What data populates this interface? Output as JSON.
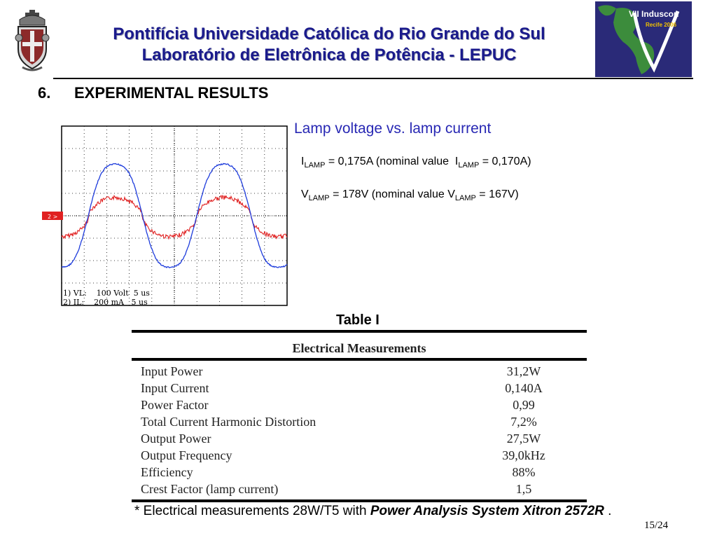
{
  "header": {
    "university": "Pontifícia Universidade Católica do Rio Grande do Sul",
    "lab": "Laboratório de Eletrônica de Potência - LEPUC",
    "conference_logo": {
      "line1": "VII Induscon",
      "line2": "Recife 2006"
    }
  },
  "section": {
    "number": "6.",
    "title": "EXPERIMENTAL RESULTS"
  },
  "scope": {
    "channel_marker": "2 >",
    "readout_line1": "1) VL:    100 Volt  5 us",
    "readout_line2": "2) IL:    200 mA   5 us",
    "trace_colors": {
      "voltage": "#1e3cdc",
      "current": "#e02020"
    }
  },
  "plot_caption": "Lamp voltage vs. lamp current",
  "measurements": {
    "current": {
      "sym": "I",
      "sub": "LAMP",
      "text": " = 0,175A (nominal value  ",
      "sym2": "I",
      "sub2": "LAMP",
      "text2": " = 0,170A)"
    },
    "voltage": {
      "sym": "V",
      "sub": "LAMP",
      "text": " = 178V (nominal value ",
      "sym2": "V",
      "sub2": "LAMP",
      "text2": " = 167V)"
    }
  },
  "table": {
    "caption": "Table I",
    "header": "Electrical Measurements",
    "rows": [
      {
        "label": "Input Power",
        "value": "31,2W"
      },
      {
        "label": "Input Current",
        "value": "0,140A"
      },
      {
        "label": "Power Factor",
        "value": "0,99"
      },
      {
        "label": "Total Current Harmonic Distortion",
        "value": "7,2%"
      },
      {
        "label": "Output Power",
        "value": "27,5W"
      },
      {
        "label": "Output Frequency",
        "value": "39,0kHz"
      },
      {
        "label": "Efficiency",
        "value": "88%"
      },
      {
        "label": "Crest Factor (lamp current)",
        "value": "1,5"
      }
    ]
  },
  "footnote": {
    "prefix": "* Electrical measurements 28W/T5 with ",
    "emphasis": "Power Analysis System Xitron 2572R",
    "suffix": " ."
  },
  "page": "15/24"
}
